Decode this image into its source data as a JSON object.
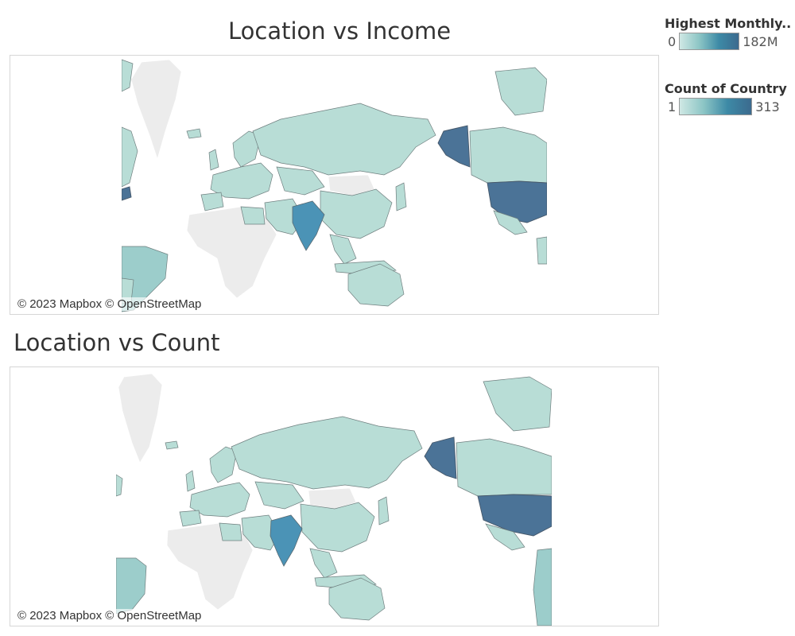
{
  "maps": [
    {
      "title": "Location vs Income",
      "attribution": "© 2023 Mapbox © OpenStreetMap"
    },
    {
      "title": "Location vs Count",
      "attribution": "© 2023 Mapbox © OpenStreetMap"
    }
  ],
  "legends": [
    {
      "title": "Highest Monthly..",
      "min": "0",
      "max": "182M",
      "color_low": "#cfe8e4",
      "color_high": "#3c6a8e"
    },
    {
      "title": "Count of Country",
      "min": "1",
      "max": "313",
      "color_low": "#cfe8e4",
      "color_high": "#3c6a8e"
    }
  ],
  "shading": {
    "United States": "highest",
    "Alaska": "highest",
    "India": "high",
    "Brazil": "medium-low",
    "Canada": "low",
    "Russia": "low",
    "China": "low",
    "Australia": "low",
    "Europe": "low",
    "Africa": "no data",
    "Greenland": "no data"
  }
}
